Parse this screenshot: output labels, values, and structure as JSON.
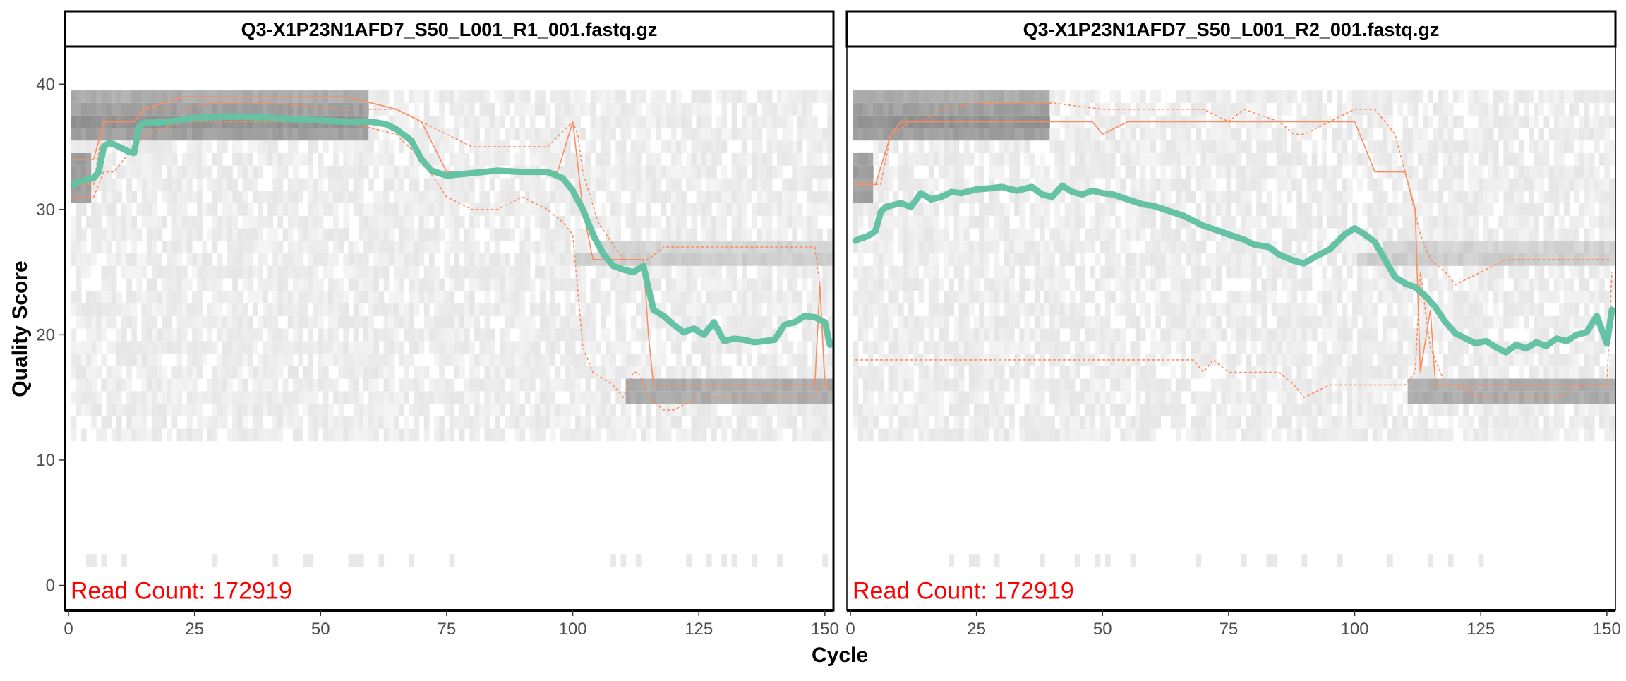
{
  "chart_data": [
    {
      "type": "heatmap",
      "title": "Q3-X1P23N1AFD7_S50_L001_R1_001.fastq.gz",
      "annotation": "Read Count:  172919",
      "xlabel": "Cycle",
      "ylabel": "Quality Score",
      "xlim": [
        0,
        151
      ],
      "ylim": [
        -2,
        43
      ],
      "x_ticks": [
        "0",
        "25",
        "50",
        "75",
        "100",
        "125",
        "150"
      ],
      "y_ticks": [
        "0",
        "10",
        "20",
        "30",
        "40"
      ],
      "grid": false,
      "series": [
        {
          "x": [
            1,
            2,
            3,
            4,
            5,
            6,
            7,
            8,
            9,
            10,
            11,
            12,
            13,
            14,
            15,
            20,
            25,
            30,
            35,
            40,
            45,
            50,
            55,
            60,
            63,
            65,
            68,
            70,
            72,
            75,
            80,
            85,
            90,
            95,
            98,
            100,
            102,
            104,
            106,
            108,
            110,
            112,
            114,
            116,
            118,
            120,
            122,
            124,
            126,
            128,
            130,
            132,
            134,
            136,
            138,
            140,
            142,
            144,
            146,
            148,
            150,
            151
          ],
          "y": [
            32.0,
            32.2,
            32.3,
            32.4,
            32.5,
            33.0,
            35.0,
            35.3,
            35.2,
            35.0,
            34.8,
            34.6,
            34.5,
            36.6,
            36.9,
            37.0,
            37.3,
            37.4,
            37.4,
            37.3,
            37.2,
            37.1,
            37.0,
            37.0,
            36.8,
            36.4,
            35.5,
            34.0,
            33.1,
            32.7,
            32.9,
            33.1,
            33.0,
            33.0,
            32.5,
            31.5,
            30.0,
            28.0,
            26.5,
            25.5,
            25.2,
            25.0,
            25.5,
            22.0,
            21.5,
            20.8,
            20.2,
            20.5,
            20.0,
            21.0,
            19.5,
            19.7,
            19.6,
            19.4,
            19.5,
            19.6,
            20.8,
            21.0,
            21.5,
            21.4,
            21.0,
            19.2
          ]
        },
        {
          "x": [
            1,
            5,
            7,
            9,
            13,
            15,
            23,
            28,
            40,
            55,
            65,
            70,
            75,
            80,
            85,
            90,
            95,
            100,
            101,
            102,
            105,
            110,
            112,
            113,
            115,
            118,
            120,
            125,
            130,
            135,
            140,
            145,
            148,
            149,
            150,
            151
          ],
          "y": [
            32,
            32,
            37,
            37,
            37,
            38,
            38,
            38.5,
            38.5,
            38,
            38,
            37,
            36,
            35,
            35,
            35,
            35,
            37,
            36,
            33,
            29,
            26,
            26,
            26,
            26,
            27,
            27,
            27,
            27,
            27,
            27,
            27,
            27,
            24,
            16,
            16
          ]
        },
        {
          "x": [
            1,
            5,
            7,
            9,
            13,
            15,
            23,
            28,
            40,
            55,
            65,
            70,
            75,
            80,
            85,
            90,
            95,
            98,
            100,
            102,
            104,
            108,
            110,
            112,
            113,
            115,
            118,
            120,
            125,
            130,
            135,
            140,
            145,
            148,
            149,
            150,
            151
          ],
          "y": [
            31,
            31,
            33,
            33,
            35,
            36,
            37,
            37,
            37,
            37,
            36,
            34,
            31,
            30,
            30,
            31,
            30,
            29,
            28,
            19,
            17,
            16,
            15,
            17,
            17,
            15,
            14,
            14,
            15,
            15,
            15,
            15,
            15,
            15,
            16,
            16,
            15.5
          ]
        },
        {
          "x": [
            1,
            5,
            7,
            9,
            13,
            15,
            23,
            28,
            40,
            55,
            65,
            70,
            75,
            80,
            85,
            90,
            95,
            97,
            100,
            102,
            104,
            108,
            112,
            114,
            115,
            116,
            118,
            120,
            125,
            130,
            135,
            140,
            145,
            148,
            149,
            150,
            151
          ],
          "y": [
            34,
            34,
            37,
            37,
            37,
            38,
            39,
            39,
            39,
            39,
            38,
            37,
            33,
            33,
            33,
            33,
            33,
            33,
            37,
            30,
            26,
            26,
            26,
            26,
            20,
            16,
            16,
            16,
            16,
            16,
            16,
            16,
            16,
            16,
            24,
            16,
            16
          ]
        }
      ]
    },
    {
      "type": "heatmap",
      "title": "Q3-X1P23N1AFD7_S50_L001_R2_001.fastq.gz",
      "annotation": "Read Count:  172919",
      "xlabel": "Cycle",
      "ylabel": "Quality Score",
      "xlim": [
        0,
        151
      ],
      "ylim": [
        -2,
        43
      ],
      "x_ticks": [
        "0",
        "25",
        "50",
        "75",
        "100",
        "125",
        "150"
      ],
      "y_ticks": [
        "0",
        "10",
        "20",
        "30",
        "40"
      ],
      "grid": false,
      "series": [
        {
          "x": [
            1,
            2,
            3,
            4,
            5,
            6,
            7,
            8,
            10,
            12,
            14,
            16,
            18,
            20,
            22,
            25,
            28,
            30,
            33,
            36,
            38,
            40,
            42,
            44,
            46,
            48,
            50,
            52,
            55,
            58,
            60,
            63,
            66,
            70,
            73,
            75,
            78,
            80,
            83,
            85,
            88,
            90,
            92,
            95,
            98,
            100,
            102,
            104,
            106,
            108,
            110,
            112,
            114,
            116,
            118,
            120,
            122,
            124,
            126,
            128,
            130,
            132,
            134,
            136,
            138,
            140,
            142,
            144,
            146,
            148,
            150,
            151
          ],
          "y": [
            27.5,
            27.7,
            27.8,
            28.0,
            28.3,
            29.8,
            30.2,
            30.3,
            30.5,
            30.2,
            31.3,
            30.8,
            31.0,
            31.4,
            31.3,
            31.6,
            31.7,
            31.8,
            31.5,
            31.8,
            31.2,
            31.0,
            31.9,
            31.4,
            31.2,
            31.5,
            31.3,
            31.2,
            30.8,
            30.4,
            30.3,
            29.9,
            29.5,
            28.7,
            28.3,
            28.0,
            27.6,
            27.2,
            27.0,
            26.4,
            25.9,
            25.7,
            26.2,
            26.8,
            28.0,
            28.5,
            28.0,
            27.4,
            26.0,
            24.6,
            24.1,
            23.8,
            23.1,
            22.2,
            21.0,
            20.1,
            19.7,
            19.3,
            19.5,
            19.0,
            18.6,
            19.2,
            18.9,
            19.4,
            19.1,
            19.7,
            19.5,
            20.0,
            20.2,
            21.5,
            19.3,
            22.0
          ]
        },
        {
          "x": [
            1,
            6,
            8,
            12,
            14,
            18,
            25,
            40,
            50,
            55,
            60,
            70,
            75,
            78,
            85,
            88,
            90,
            95,
            100,
            104,
            108,
            110,
            113,
            115,
            118,
            120,
            125,
            130,
            135,
            140,
            145,
            148,
            150,
            151
          ],
          "y": [
            32,
            32,
            36,
            37,
            37,
            38,
            38.5,
            38.5,
            38,
            38,
            38,
            38,
            37,
            38,
            37,
            36,
            36,
            37,
            38,
            38,
            36,
            33,
            28,
            26,
            25,
            24,
            25,
            26,
            26,
            26,
            26,
            26,
            26,
            26
          ]
        },
        {
          "x": [
            1,
            6,
            8,
            10,
            14,
            18,
            22,
            30,
            40,
            50,
            55,
            60,
            68,
            70,
            72,
            75,
            78,
            80,
            85,
            88,
            90,
            95,
            100,
            104,
            106,
            110,
            112,
            113,
            115,
            118,
            120,
            125,
            130,
            135,
            140,
            145,
            148,
            150,
            151
          ],
          "y": [
            18,
            18,
            18,
            18,
            18,
            18,
            18,
            18,
            18,
            18,
            18,
            18,
            18,
            17,
            18,
            17,
            17,
            17,
            17,
            16,
            15,
            16,
            16,
            16,
            16,
            16,
            17,
            25,
            19,
            16,
            16,
            15,
            15,
            15,
            15,
            16,
            16,
            16,
            25
          ]
        },
        {
          "x": [
            1,
            5,
            8,
            10,
            12,
            14,
            18,
            22,
            30,
            40,
            48,
            50,
            55,
            60,
            65,
            70,
            75,
            80,
            85,
            90,
            95,
            100,
            102,
            104,
            106,
            108,
            110,
            112,
            113,
            115,
            116,
            118,
            120,
            125,
            130,
            135,
            140,
            145,
            148,
            150,
            151
          ],
          "y": [
            32,
            32,
            36,
            37,
            37,
            37,
            37,
            37,
            37,
            37,
            37,
            36,
            37,
            37,
            37,
            37,
            37,
            37,
            37,
            37,
            37,
            37,
            35,
            33,
            33,
            33,
            33,
            30,
            17,
            22,
            16,
            16,
            16,
            16,
            16,
            16,
            16,
            16,
            16,
            16,
            16
          ]
        }
      ]
    }
  ]
}
